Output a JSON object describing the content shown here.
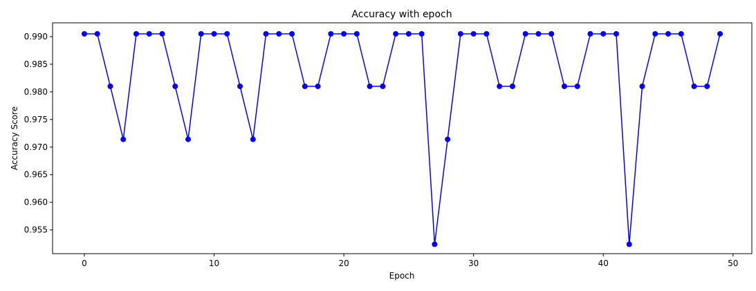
{
  "chart_data": {
    "type": "line",
    "title": "Accuracy with epoch",
    "xlabel": "Epoch",
    "ylabel": "Accuracy Score",
    "xlim": [
      -2.45,
      51.45
    ],
    "ylim": [
      0.9507,
      0.9925
    ],
    "xticks": [
      0,
      10,
      20,
      30,
      40,
      50
    ],
    "yticks": [
      0.955,
      0.96,
      0.965,
      0.97,
      0.975,
      0.98,
      0.985,
      0.99
    ],
    "grid": false,
    "colors": {
      "series": "#0000ff"
    },
    "series": [
      {
        "marker": "circle",
        "x": [
          0,
          1,
          2,
          3,
          4,
          5,
          6,
          7,
          8,
          9,
          10,
          11,
          12,
          13,
          14,
          15,
          16,
          17,
          18,
          19,
          20,
          21,
          22,
          23,
          24,
          25,
          26,
          27,
          28,
          29,
          30,
          31,
          32,
          33,
          34,
          35,
          36,
          37,
          38,
          39,
          40,
          41,
          42,
          43,
          44,
          45,
          46,
          47,
          48,
          49
        ],
        "y": [
          0.9905,
          0.9905,
          0.981,
          0.9714,
          0.9905,
          0.9905,
          0.9905,
          0.981,
          0.9714,
          0.9905,
          0.9905,
          0.9905,
          0.981,
          0.9714,
          0.9905,
          0.9905,
          0.9905,
          0.981,
          0.981,
          0.9905,
          0.9905,
          0.9905,
          0.981,
          0.981,
          0.9905,
          0.9905,
          0.9905,
          0.9524,
          0.9714,
          0.9905,
          0.9905,
          0.9905,
          0.981,
          0.981,
          0.9905,
          0.9905,
          0.9905,
          0.981,
          0.981,
          0.9905,
          0.9905,
          0.9905,
          0.9524,
          0.981,
          0.9905,
          0.9905,
          0.9905,
          0.981,
          0.981,
          0.9905
        ]
      }
    ]
  }
}
